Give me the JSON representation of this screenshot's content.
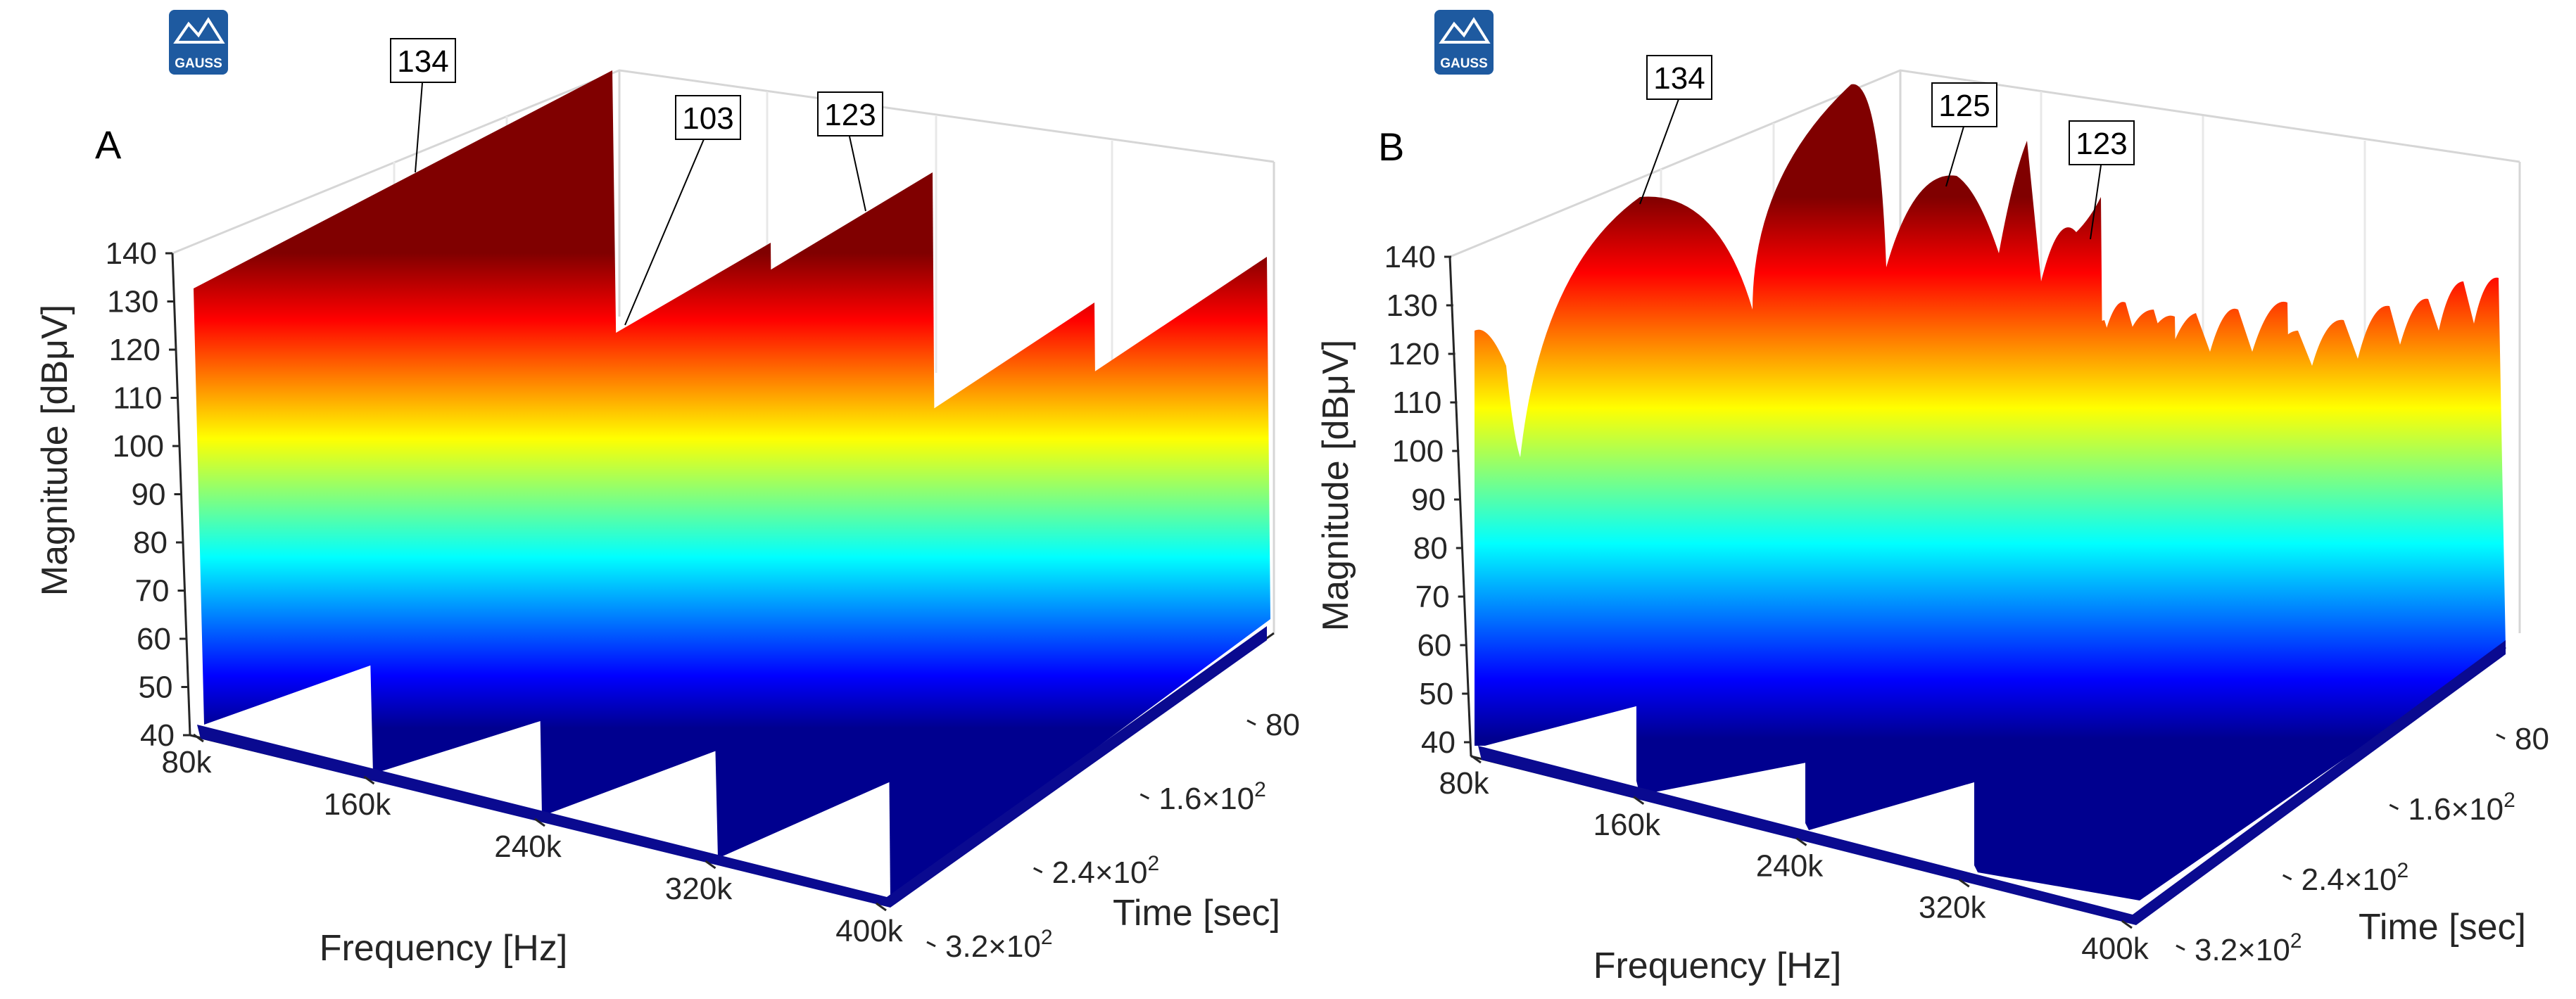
{
  "chart_data": [
    {
      "type": "waterfall-3d",
      "panel_label": "A",
      "logo_text": "GAUSS",
      "zlabel": "Magnitude [dBμV]",
      "xlabel": "Frequency [Hz]",
      "ylabel": "Time [sec]",
      "zlim": [
        40,
        140
      ],
      "z_ticks": [
        "140",
        "130",
        "120",
        "110",
        "100",
        "90",
        "80",
        "70",
        "60",
        "50",
        "40"
      ],
      "x_ticks": [
        "80k",
        "160k",
        "240k",
        "320k",
        "400k"
      ],
      "y_ticks": [
        "80",
        "1.6×10",
        "2.4×10",
        "3.2×10"
      ],
      "y_tick_exponents": [
        "",
        "2",
        "2",
        "2"
      ],
      "ridges": [
        {
          "name": "ridge-1",
          "freq_hz": 80000,
          "peak_dbuv": 134,
          "profile": "flat"
        },
        {
          "name": "ridge-2",
          "freq_hz": 160000,
          "peak_dbuv": 103,
          "profile": "flat"
        },
        {
          "name": "ridge-3",
          "freq_hz": 240000,
          "peak_dbuv": 123,
          "profile": "flat"
        },
        {
          "name": "ridge-4",
          "freq_hz": 320000,
          "peak_dbuv": 103,
          "profile": "flat"
        },
        {
          "name": "ridge-5",
          "freq_hz": 400000,
          "peak_dbuv": 123,
          "profile": "flat"
        }
      ],
      "annotations": [
        "134",
        "103",
        "123"
      ]
    },
    {
      "type": "waterfall-3d",
      "panel_label": "B",
      "logo_text": "GAUSS",
      "zlabel": "Magnitude [dBμV]",
      "xlabel": "Frequency [Hz]",
      "ylabel": "Time [sec]",
      "zlim": [
        40,
        140
      ],
      "z_ticks": [
        "140",
        "130",
        "120",
        "110",
        "100",
        "90",
        "80",
        "70",
        "60",
        "50",
        "40"
      ],
      "x_ticks": [
        "80k",
        "160k",
        "240k",
        "320k",
        "400k"
      ],
      "y_ticks": [
        "80",
        "1.6×10",
        "2.4×10",
        "3.2×10"
      ],
      "y_tick_exponents": [
        "",
        "2",
        "2",
        "2"
      ],
      "ridges": [
        {
          "name": "ridge-1",
          "freq_hz": 80000,
          "peak_dbuv": 134,
          "profile": "lobed",
          "lobes": [
            1,
            0.4,
            0.6,
            0.4,
            0.6,
            0.4
          ]
        },
        {
          "name": "ridge-2",
          "freq_hz": 160000,
          "peak_dbuv": 125,
          "profile": "lobed",
          "lobes": [
            0.5,
            0.5,
            0.5,
            0.3,
            0.3,
            0.3,
            0.3,
            0.3
          ]
        },
        {
          "name": "ridge-3",
          "freq_hz": 240000,
          "peak_dbuv": 123,
          "profile": "lobed",
          "lobes": [
            0.5,
            0.5,
            0.5,
            0.5,
            0.4,
            0.4,
            0.4,
            0.4,
            0.4
          ]
        },
        {
          "name": "ridge-4",
          "freq_hz": 320000,
          "peak_dbuv": 120,
          "profile": "lobed",
          "lobes": [
            0.6,
            0.6,
            0.5,
            0.5,
            0.5,
            0.4,
            0.4,
            0.4,
            0.4,
            0.4
          ]
        }
      ],
      "annotations": [
        "134",
        "125",
        "123"
      ]
    }
  ]
}
